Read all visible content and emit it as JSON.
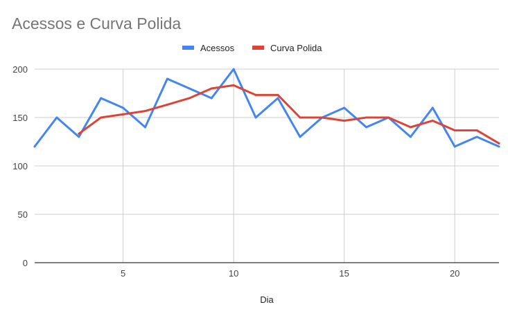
{
  "chart_data": {
    "type": "line",
    "title": "Acessos e Curva Polida",
    "xlabel": "Dia",
    "ylabel": "",
    "xlim": [
      1,
      22
    ],
    "ylim": [
      0,
      200
    ],
    "x_ticks": [
      5,
      10,
      15,
      20
    ],
    "y_ticks": [
      0,
      50,
      100,
      150,
      200
    ],
    "grid": true,
    "legend_position": "top",
    "series": [
      {
        "name": "Acessos",
        "color": "#4285f4",
        "x": [
          1,
          2,
          3,
          4,
          5,
          6,
          7,
          8,
          9,
          10,
          11,
          12,
          13,
          14,
          15,
          16,
          17,
          18,
          19,
          20,
          21,
          22
        ],
        "values": [
          120,
          150,
          130,
          170,
          160,
          140,
          190,
          180,
          170,
          200,
          150,
          170,
          130,
          150,
          160,
          140,
          150,
          130,
          160,
          120,
          130,
          120
        ]
      },
      {
        "name": "Curva Polida",
        "color": "#db4437",
        "x": [
          3,
          4,
          5,
          6,
          7,
          8,
          9,
          10,
          11,
          12,
          13,
          14,
          15,
          16,
          17,
          18,
          19,
          20,
          21,
          22
        ],
        "values": [
          133.3,
          150,
          153.3,
          156.7,
          163.3,
          170,
          180,
          183.3,
          173.3,
          173.3,
          150,
          150,
          146.7,
          150,
          150,
          140,
          146.7,
          136.7,
          136.7,
          123.3
        ]
      }
    ]
  }
}
